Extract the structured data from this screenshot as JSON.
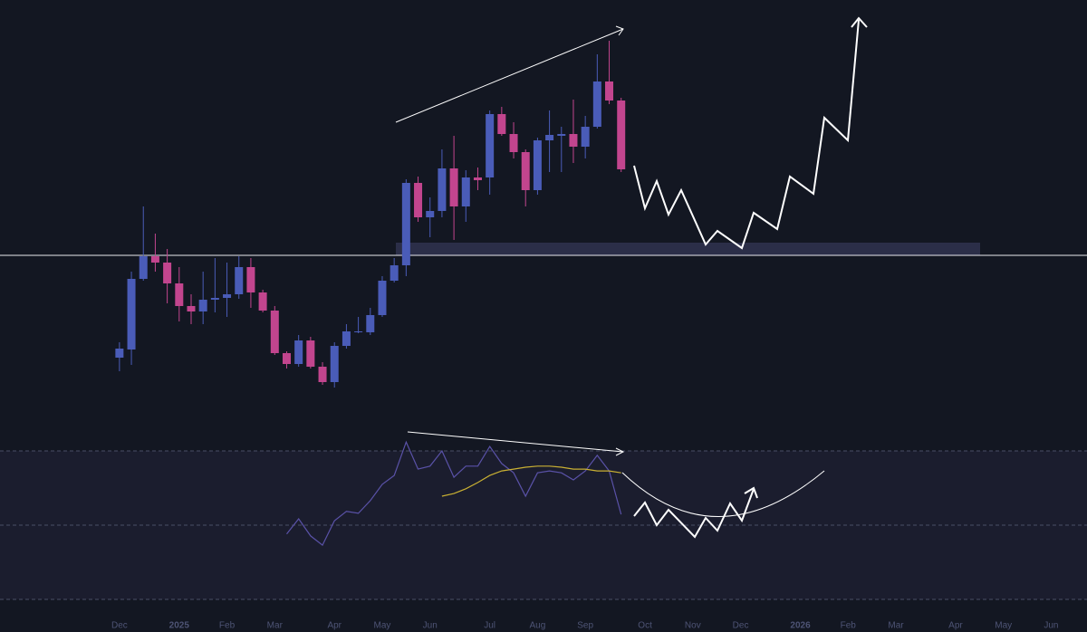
{
  "chart_data": [
    {
      "type": "candlestick",
      "x": [
        0,
        1,
        2,
        3,
        4,
        5,
        6,
        7,
        8,
        9,
        10,
        11,
        12,
        13,
        14,
        15,
        16,
        17,
        18,
        19,
        20,
        21,
        22,
        23,
        24,
        25,
        26,
        27,
        28,
        29,
        30,
        31,
        32,
        33,
        34,
        35,
        36,
        37,
        38,
        39,
        40,
        41,
        42
      ],
      "open": [
        65,
        74,
        152,
        177,
        170,
        147,
        122,
        116,
        129,
        131,
        135,
        165,
        137,
        117,
        70,
        58,
        84,
        55,
        38,
        78,
        93,
        93,
        112,
        150,
        167,
        258,
        220,
        227,
        274,
        232,
        264,
        264,
        334,
        312,
        292,
        250,
        305,
        310,
        312,
        298,
        320,
        370,
        349
      ],
      "high": [
        82,
        160,
        232,
        202,
        185,
        165,
        135,
        160,
        175,
        170,
        177,
        175,
        140,
        122,
        72,
        90,
        88,
        60,
        82,
        102,
        110,
        120,
        155,
        175,
        262,
        265,
        242,
        295,
        310,
        272,
        275,
        338,
        342,
        325,
        295,
        308,
        338,
        320,
        350,
        332,
        400,
        415,
        352
      ],
      "low": [
        50,
        57,
        150,
        160,
        125,
        105,
        102,
        102,
        115,
        110,
        130,
        120,
        115,
        68,
        53,
        55,
        53,
        35,
        32,
        75,
        92,
        90,
        110,
        148,
        155,
        215,
        198,
        220,
        195,
        215,
        250,
        245,
        310,
        285,
        232,
        245,
        270,
        270,
        280,
        285,
        318,
        345,
        270
      ],
      "close": [
        75,
        152,
        177,
        170,
        147,
        122,
        116,
        129,
        131,
        135,
        165,
        137,
        117,
        70,
        58,
        84,
        55,
        38,
        78,
        94,
        94,
        112,
        150,
        167,
        258,
        220,
        227,
        274,
        232,
        264,
        261,
        334,
        312,
        292,
        250,
        305,
        311,
        312,
        298,
        320,
        370,
        349,
        273
      ],
      "up_color": "#4a5cb8",
      "down_color": "#c2458e",
      "ylim": [
        0,
        460
      ],
      "xlim": [
        -10,
        81
      ],
      "xticks": [
        {
          "value": 0,
          "label": "Dec"
        },
        {
          "value": 5,
          "label": "2025"
        },
        {
          "value": 9,
          "label": "Feb"
        },
        {
          "value": 13,
          "label": "Mar"
        },
        {
          "value": 18,
          "label": "Apr"
        },
        {
          "value": 22,
          "label": "May"
        },
        {
          "value": 26,
          "label": "Jun"
        },
        {
          "value": 31,
          "label": "Jul"
        },
        {
          "value": 35,
          "label": "Aug"
        },
        {
          "value": 39,
          "label": "Sep"
        },
        {
          "value": 44,
          "label": "Oct"
        },
        {
          "value": 48,
          "label": "Nov"
        },
        {
          "value": 52,
          "label": "Dec"
        },
        {
          "value": 57,
          "label": "2026"
        },
        {
          "value": 61,
          "label": "Feb"
        },
        {
          "value": 65,
          "label": "Mar"
        },
        {
          "value": 70,
          "label": "Apr"
        },
        {
          "value": 74,
          "label": "May"
        },
        {
          "value": 78,
          "label": "Jun"
        }
      ]
    },
    {
      "type": "line",
      "series": [
        {
          "color": "#5a52a8",
          "x": [
            14,
            15,
            16,
            17,
            18,
            19,
            20,
            21,
            22,
            23,
            24,
            25,
            26,
            27,
            28,
            29,
            30,
            31,
            32,
            33,
            34,
            35,
            36,
            37,
            38,
            39,
            40,
            41,
            42
          ],
          "values": [
            47.6,
            51.7,
            47.1,
            44.6,
            51.2,
            53.7,
            53.2,
            56.6,
            61.0,
            63.4,
            72.4,
            65.1,
            65.9,
            70.0,
            62.9,
            65.9,
            65.9,
            71.2,
            66.6,
            64.1,
            57.8,
            64.1,
            64.6,
            64.1,
            62.2,
            64.6,
            68.8,
            64.6,
            52.9
          ]
        },
        {
          "color": "#c9b033",
          "x": [
            27,
            28,
            29,
            30,
            31,
            32,
            33,
            34,
            35,
            36,
            37,
            38,
            39,
            40,
            41,
            42
          ],
          "values": [
            57.8,
            58.5,
            59.8,
            61.5,
            63.4,
            64.6,
            65.1,
            65.6,
            65.9,
            65.9,
            65.6,
            65.1,
            65.1,
            64.6,
            64.6,
            64.1
          ]
        }
      ],
      "ylim": [
        20,
        80
      ],
      "yticks": [
        30,
        50,
        70
      ],
      "xlim": [
        -10,
        81
      ]
    }
  ]
}
